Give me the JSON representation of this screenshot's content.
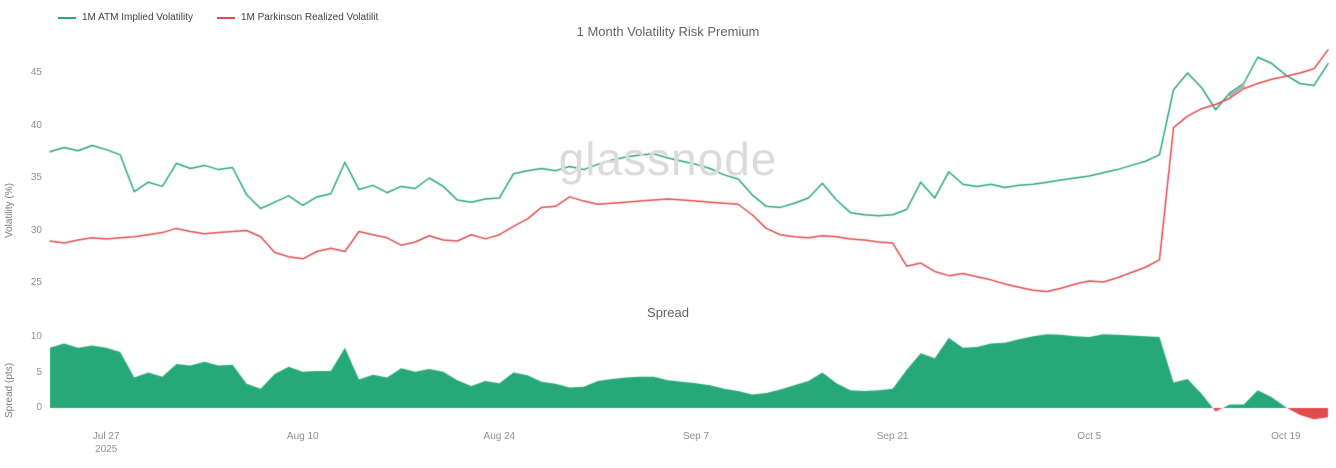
{
  "watermark": "glassnode",
  "chart_data": [
    {
      "type": "line",
      "title": "1 Month Volatility Risk Premium",
      "ylabel": "Volatility (%)",
      "ylim": [
        23.5,
        47.5
      ],
      "yticks": [
        25,
        30,
        35,
        40,
        45
      ],
      "grid": false,
      "legend_position": "top-left",
      "x_start_date": "2025-07-23",
      "x_frequency_days": 1,
      "series": [
        {
          "name": "1M ATM Implied Volatility",
          "color": "#27a878",
          "values": [
            37.5,
            37.9,
            37.6,
            38.1,
            37.7,
            37.2,
            33.7,
            34.6,
            34.2,
            36.4,
            35.9,
            36.2,
            35.8,
            36.0,
            33.4,
            32.1,
            32.7,
            33.3,
            32.4,
            33.2,
            33.5,
            36.5,
            33.9,
            34.3,
            33.6,
            34.2,
            34.0,
            35.0,
            34.2,
            32.9,
            32.7,
            33.0,
            33.1,
            35.4,
            35.7,
            35.9,
            35.7,
            36.1,
            35.8,
            36.3,
            36.7,
            37.0,
            37.2,
            37.3,
            36.9,
            36.6,
            36.3,
            35.9,
            35.3,
            34.9,
            33.4,
            32.3,
            32.2,
            32.6,
            33.1,
            34.5,
            32.9,
            31.7,
            31.5,
            31.4,
            31.5,
            32.0,
            34.6,
            33.1,
            35.6,
            34.4,
            34.2,
            34.4,
            34.1,
            34.3,
            34.4,
            34.6,
            34.8,
            35.0,
            35.2,
            35.5,
            35.8,
            36.2,
            36.6,
            37.2,
            43.4,
            45.0,
            43.6,
            41.5,
            43.1,
            44.0,
            46.5,
            45.9,
            44.8,
            44.0,
            43.8,
            45.9
          ]
        },
        {
          "name": "1M Parkinson Realized Volatilit",
          "color": "#e24b4b",
          "values": [
            29.0,
            28.8,
            29.1,
            29.3,
            29.2,
            29.3,
            29.4,
            29.6,
            29.8,
            30.2,
            29.9,
            29.7,
            29.8,
            29.9,
            30.0,
            29.4,
            27.9,
            27.5,
            27.3,
            28.0,
            28.3,
            28.0,
            29.9,
            29.6,
            29.3,
            28.6,
            28.9,
            29.5,
            29.1,
            29.0,
            29.6,
            29.2,
            29.6,
            30.4,
            31.1,
            32.2,
            32.3,
            33.2,
            32.8,
            32.5,
            32.6,
            32.7,
            32.8,
            32.9,
            33.0,
            32.9,
            32.8,
            32.7,
            32.6,
            32.5,
            31.5,
            30.2,
            29.6,
            29.4,
            29.3,
            29.5,
            29.4,
            29.2,
            29.1,
            28.9,
            28.8,
            26.6,
            26.9,
            26.1,
            25.7,
            25.9,
            25.6,
            25.3,
            24.9,
            24.6,
            24.3,
            24.2,
            24.5,
            24.9,
            25.2,
            25.1,
            25.5,
            26.0,
            26.5,
            27.2,
            39.8,
            40.9,
            41.6,
            42.0,
            42.6,
            43.5,
            44.0,
            44.4,
            44.7,
            45.0,
            45.4,
            47.2
          ]
        }
      ]
    },
    {
      "type": "area",
      "title": "Spread",
      "ylabel": "Spread (pts)",
      "ylim": [
        -2.5,
        11.5
      ],
      "yticks": [
        0,
        5,
        10
      ],
      "grid": false,
      "positive_color": "#27a878",
      "negative_color": "#e24b4b",
      "values": [
        8.5,
        9.1,
        8.5,
        8.8,
        8.5,
        7.9,
        4.3,
        5.0,
        4.4,
        6.2,
        6.0,
        6.5,
        6.0,
        6.1,
        3.4,
        2.7,
        4.8,
        5.8,
        5.1,
        5.2,
        5.2,
        8.5,
        4.0,
        4.7,
        4.3,
        5.6,
        5.1,
        5.5,
        5.1,
        3.9,
        3.1,
        3.8,
        3.5,
        5.0,
        4.6,
        3.7,
        3.4,
        2.9,
        3.0,
        3.8,
        4.1,
        4.3,
        4.4,
        4.4,
        3.9,
        3.7,
        3.5,
        3.2,
        2.7,
        2.4,
        1.9,
        2.1,
        2.6,
        3.2,
        3.8,
        5.0,
        3.5,
        2.5,
        2.4,
        2.5,
        2.7,
        5.4,
        7.7,
        7.0,
        9.9,
        8.5,
        8.6,
        9.1,
        9.2,
        9.7,
        10.1,
        10.4,
        10.3,
        10.1,
        10.0,
        10.4,
        10.3,
        10.2,
        10.1,
        10.0,
        3.6,
        4.1,
        2.0,
        -0.5,
        0.5,
        0.5,
        2.5,
        1.5,
        0.1,
        -1.0,
        -1.6,
        -1.3
      ]
    }
  ],
  "x_axis": {
    "ticks": [
      {
        "index": 4,
        "label": "Jul 27",
        "sub_label": "2025"
      },
      {
        "index": 18,
        "label": "Aug 10"
      },
      {
        "index": 32,
        "label": "Aug 24"
      },
      {
        "index": 46,
        "label": "Sep 7"
      },
      {
        "index": 60,
        "label": "Sep 21"
      },
      {
        "index": 74,
        "label": "Oct 5"
      },
      {
        "index": 88,
        "label": "Oct 19"
      }
    ]
  }
}
